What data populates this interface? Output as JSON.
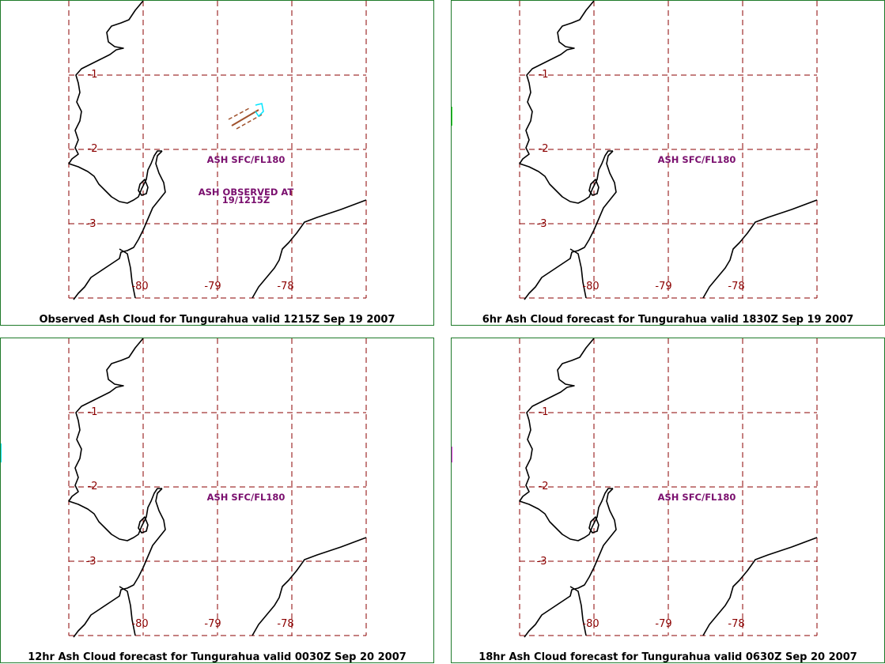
{
  "panels": [
    {
      "caption": "Observed Ash Cloud for Tungurahua valid 1215Z Sep 19 2007",
      "cloud_color": "#a0522d",
      "vent_color": "#00e5ff",
      "labels": [
        "ASH SFC/FL180",
        "ASH OBSERVED AT",
        "19/1215Z"
      ]
    },
    {
      "caption": "6hr Ash Cloud forecast for Tungurahua valid 1830Z Sep 19 2007",
      "cloud_color": "#22dd22",
      "vent_color": "#00e5ff",
      "labels": [
        "ASH SFC/FL180"
      ]
    },
    {
      "caption": "12hr Ash Cloud forecast for Tungurahua valid 0030Z Sep 20 2007",
      "cloud_color": "#00e5ff",
      "vent_color": "#00e5ff",
      "labels": [
        "ASH SFC/FL180"
      ]
    },
    {
      "caption": "18hr Ash Cloud forecast for Tungurahua valid 0630Z Sep 20 2007",
      "cloud_color": "#e020e0",
      "vent_color": "#00e5ff",
      "labels": [
        "ASH SFC/FL180"
      ]
    }
  ],
  "grid": {
    "lat_labels": [
      "-1",
      "-2",
      "-3"
    ],
    "lon_labels": [
      "-80",
      "-79",
      "-78"
    ]
  },
  "colors": {
    "grid": "#8b0000",
    "annotation": "#7a0f6e",
    "border": "#1e7a2a"
  }
}
